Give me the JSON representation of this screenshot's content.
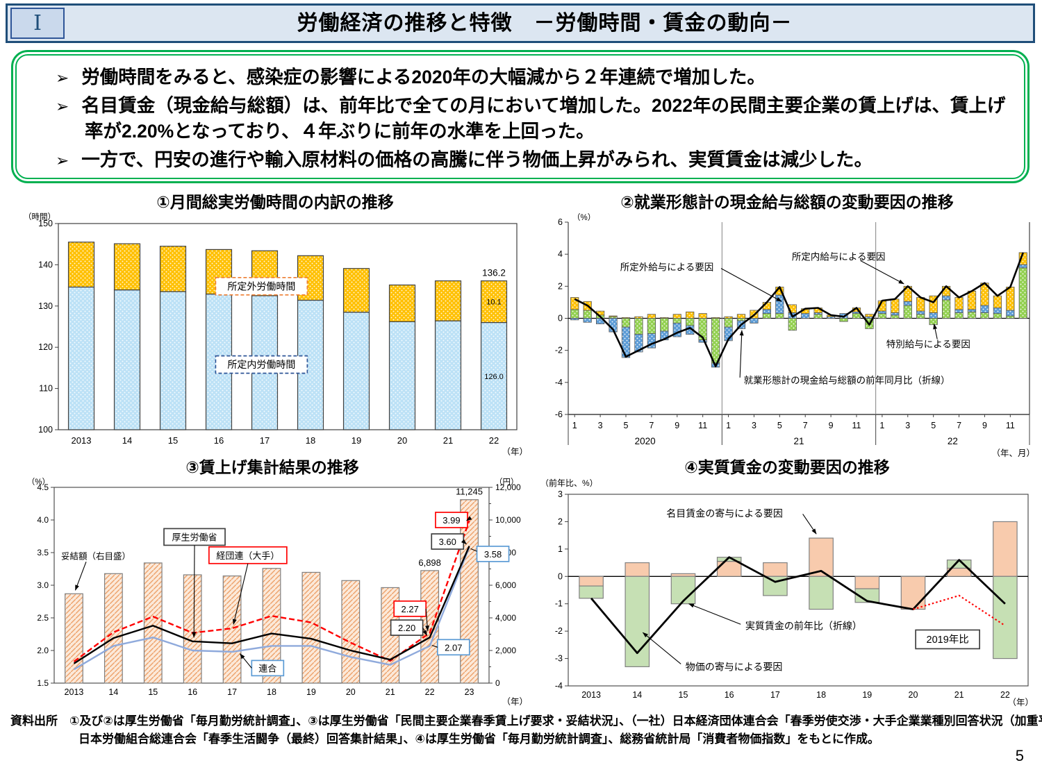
{
  "header": {
    "numeral": "Ⅰ",
    "title": "労働経済の推移と特徴　－労働時間・賃金の動向－"
  },
  "summary": {
    "marker": "➢",
    "bullets": [
      "労働時間をみると、感染症の影響による2020年の大幅減から２年連続で増加した。",
      "名目賃金（現金給与総額）は、前年比で全ての月において増加した。2022年の民間主要企業の賃上げは、賃上げ率が2.20%となっており、４年ぶりに前年の水準を上回った。",
      "一方で、円安の進行や輸入原材料の価格の高騰に伴う物価上昇がみられ、実質賃金は減少した。"
    ]
  },
  "theme": {
    "banner_bg": "#DCE6F1",
    "banner_border": "#1F4E79",
    "numeral_bg": "#CAD9EC",
    "accent_green": "#00B050"
  },
  "chart_data": [
    {
      "type": "bar",
      "title": "①月間総実労働時間の内訳の推移",
      "y_unit": "（時間）",
      "x_unit": "（年）",
      "ylim": [
        100,
        150
      ],
      "ytick_step": 10,
      "categories": [
        "2013",
        "14",
        "15",
        "16",
        "17",
        "18",
        "19",
        "20",
        "21",
        "22"
      ],
      "series": [
        {
          "name": "所定内労働時間",
          "color": "#BCE1F6",
          "values": [
            134.6,
            133.9,
            133.5,
            132.9,
            132.5,
            131.4,
            128.5,
            126.2,
            126.4,
            126.0
          ]
        },
        {
          "name": "所定外労働時間",
          "color": "#FFC000",
          "values": [
            10.9,
            11.2,
            11.0,
            10.8,
            10.9,
            10.8,
            10.6,
            8.9,
            9.7,
            10.1
          ]
        }
      ],
      "value_labels": {
        "total": "136.2",
        "overtime": "10.1",
        "scheduled": "126.0"
      }
    },
    {
      "type": "stacked-bar-line",
      "title": "②就業形態計の現金給与総額の変動要因の推移",
      "y_unit": "（%）",
      "x_unit": "（年、月）",
      "ylim": [
        -6,
        6
      ],
      "ytick_step": 2,
      "year_groups": [
        {
          "label": "2020"
        },
        {
          "label": "21"
        },
        {
          "label": "22"
        }
      ],
      "month_tick_labels": [
        "1",
        "3",
        "5",
        "7",
        "9",
        "11"
      ],
      "series": [
        {
          "name": "特別給与による要因",
          "color": "#92D050",
          "values": [
            0.55,
            0.5,
            0.2,
            0.1,
            -0.55,
            -1.0,
            -0.95,
            -0.8,
            -0.3,
            -0.45,
            -1.35,
            -2.8,
            -0.55,
            -0.15,
            0,
            0.3,
            0.3,
            -0.75,
            0,
            0.25,
            0,
            -0.2,
            0.3,
            -0.65,
            0.3,
            0.2,
            0.8,
            0.25,
            -0.4,
            1.15,
            0.35,
            0.4,
            0.35,
            0.3,
            0.15,
            3.15
          ]
        },
        {
          "name": "所定外給与による要因",
          "color": "#5B9BD5",
          "values": [
            -0.1,
            -0.25,
            -0.35,
            -0.85,
            -1.9,
            -1.1,
            -0.9,
            -0.55,
            -0.85,
            -0.55,
            -0.15,
            -0.25,
            -0.85,
            -0.5,
            -0.3,
            0.25,
            1.15,
            0.35,
            0.3,
            0.1,
            0.1,
            0.3,
            0.1,
            0.1,
            0.15,
            0.15,
            0.25,
            0.2,
            0.35,
            0.25,
            0.2,
            0.15,
            0.45,
            0.35,
            0.35,
            0.2
          ]
        },
        {
          "name": "所定内給与による要因",
          "color": "#FFC000",
          "values": [
            0.75,
            0.55,
            0.25,
            0.05,
            0.05,
            0.1,
            0.25,
            0.05,
            0.25,
            0.4,
            0.3,
            0.05,
            0.1,
            0.25,
            0.5,
            0.45,
            0.5,
            0.5,
            0.3,
            0.3,
            0.1,
            0,
            0.25,
            0.15,
            0.65,
            0.85,
            0.95,
            0.85,
            1.05,
            0.6,
            0.75,
            1.15,
            1.4,
            0.75,
            1.45,
            0.75
          ]
        }
      ],
      "line": {
        "name": "就業形態計の現金給与総額の前年同月比（折線）",
        "color": "#000000",
        "values": [
          1.2,
          0.8,
          0.1,
          -0.7,
          -2.4,
          -2.0,
          -1.6,
          -1.3,
          -0.9,
          -0.6,
          -1.2,
          -3.0,
          -1.3,
          -0.4,
          0.2,
          1.0,
          1.95,
          0.1,
          0.6,
          0.65,
          0.2,
          0.1,
          0.65,
          -0.4,
          1.1,
          1.2,
          2.0,
          1.3,
          1.0,
          2.0,
          1.3,
          1.7,
          2.2,
          1.4,
          1.95,
          4.1
        ]
      }
    },
    {
      "type": "bar-line-combo",
      "title": "③賃上げ集計結果の推移",
      "left_unit": "（%）",
      "right_unit": "（円）",
      "x_unit": "（年）",
      "left_ylim": [
        1.5,
        4.5
      ],
      "left_step": 0.5,
      "right_ylim": [
        0,
        12000
      ],
      "right_step": 2000,
      "categories": [
        "2013",
        "14",
        "15",
        "16",
        "17",
        "18",
        "19",
        "20",
        "21",
        "22",
        "23"
      ],
      "bars": {
        "name": "妥結額（右目盛）",
        "color": "#F4B183",
        "values": [
          5478,
          6711,
          7367,
          6639,
          6570,
          7033,
          6790,
          6286,
          5854,
          6898,
          11245
        ]
      },
      "lines": [
        {
          "name": "厚生労働省",
          "color": "#000000",
          "values": [
            1.8,
            2.19,
            2.38,
            2.14,
            2.11,
            2.26,
            2.18,
            2.0,
            1.86,
            2.2,
            3.6
          ]
        },
        {
          "name": "経団連（大手）",
          "color": "#FF0000",
          "dash": true,
          "values": [
            1.83,
            2.28,
            2.52,
            2.27,
            2.34,
            2.53,
            2.43,
            2.12,
            1.84,
            2.27,
            3.99
          ]
        },
        {
          "name": "連合",
          "color": "#8FAADC",
          "values": [
            1.71,
            2.07,
            2.2,
            2.0,
            1.98,
            2.07,
            2.07,
            1.9,
            1.78,
            2.07,
            3.58
          ]
        }
      ],
      "bar_value_labels": [
        "6,898",
        "11,245"
      ],
      "annotation_labels": [
        "妥結額（右目盛）",
        "厚生労働省",
        "経団連（大手）",
        "連合"
      ],
      "callouts": {
        "y2022": [
          "2.27",
          "2.20",
          "2.07"
        ],
        "y2023": [
          "3.99",
          "3.60",
          "3.58"
        ]
      }
    },
    {
      "type": "stacked-bar-line",
      "title": "④実質賃金の変動要因の推移",
      "y_unit": "（前年比、%）",
      "x_unit": "（年）",
      "ylim": [
        -4,
        3
      ],
      "categories": [
        "2013",
        "14",
        "15",
        "16",
        "17",
        "18",
        "19",
        "20",
        "21",
        "22"
      ],
      "series": [
        {
          "name": "名目賃金の寄与による要因",
          "color": "#F8CBAD",
          "values": [
            -0.35,
            0.5,
            0.1,
            0.55,
            0.5,
            1.4,
            -0.45,
            -1.2,
            0.3,
            2.0
          ]
        },
        {
          "name": "物価の寄与による要因",
          "color": "#C6E0B4",
          "values": [
            -0.45,
            -3.3,
            -1.0,
            0.15,
            -0.7,
            -1.2,
            -0.5,
            0,
            0.3,
            -3.0
          ]
        }
      ],
      "line": {
        "name": "実質賃金の前年比（折線）",
        "color": "#000000",
        "values": [
          -0.8,
          -2.8,
          -0.9,
          0.7,
          -0.2,
          0.2,
          -0.9,
          -1.2,
          0.6,
          -1.0
        ]
      },
      "line2": {
        "name": "2019年比",
        "color": "#FF0000",
        "start_index": 7,
        "values": [
          -1.2,
          -0.7,
          -1.8
        ]
      }
    }
  ],
  "source_note": {
    "label": "資料出所　",
    "text": "①及び②は厚生労働省「毎月勤労統計調査」、③は厚生労働省「民間主要企業春季賃上げ要求・妥結状況」、（一社）日本経済団体連合会「春季労使交渉・大手企業業種別回答状況（加重平均）」、日本労働組合総連合会「春季生活闘争（最終）回答集計結果」、④は厚生労働省「毎月勤労統計調査」、総務省統計局「消費者物価指数」をもとに作成。"
  },
  "page_number": "5"
}
